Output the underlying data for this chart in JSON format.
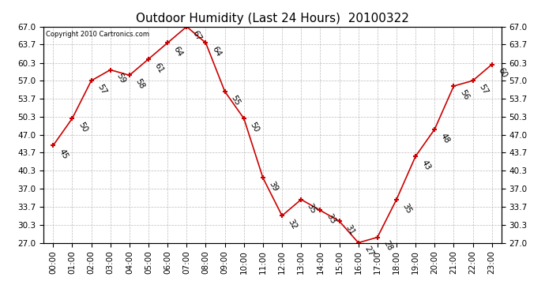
{
  "title": "Outdoor Humidity (Last 24 Hours)  20100322",
  "copyright": "Copyright 2010 Cartronics.com",
  "hours": [
    "00:00",
    "01:00",
    "02:00",
    "03:00",
    "04:00",
    "05:00",
    "06:00",
    "07:00",
    "08:00",
    "09:00",
    "10:00",
    "11:00",
    "12:00",
    "13:00",
    "14:00",
    "15:00",
    "16:00",
    "17:00",
    "18:00",
    "19:00",
    "20:00",
    "21:00",
    "22:00",
    "23:00"
  ],
  "values": [
    45,
    50,
    57,
    59,
    58,
    61,
    64,
    67,
    64,
    55,
    50,
    39,
    32,
    35,
    33,
    31,
    27,
    28,
    35,
    43,
    48,
    56,
    57,
    60
  ],
  "ylim": [
    27.0,
    67.0
  ],
  "yticks": [
    27.0,
    30.3,
    33.7,
    37.0,
    40.3,
    43.7,
    47.0,
    50.3,
    53.7,
    57.0,
    60.3,
    63.7,
    67.0
  ],
  "line_color": "#cc0000",
  "marker_color": "#cc0000",
  "bg_color": "#ffffff",
  "grid_color": "#bbbbbb",
  "title_fontsize": 11,
  "label_fontsize": 7.5,
  "tick_fontsize": 7.5
}
